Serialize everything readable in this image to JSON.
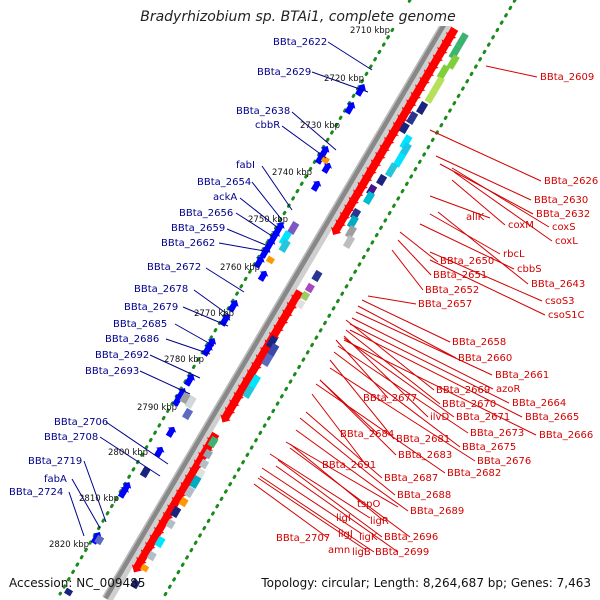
{
  "title": "Bradyrhizobium sp. BTAi1, complete genome",
  "footer": {
    "accession": "Accession: NC_009485",
    "topology": "Topology: circular; Length: 8,264,687 bp; Genes: 7,463"
  },
  "kbp_ticks": [
    "2710 kbp",
    "2720 kbp",
    "2730 kbp",
    "2740 kbp",
    "2750 kbp",
    "2760 kbp",
    "2770 kbp",
    "2780 kbp",
    "2790 kbp",
    "2800 kbp",
    "2810 kbp",
    "2820 kbp"
  ],
  "left_labels": [
    "BBta_2622",
    "BBta_2629",
    "BBta_2638",
    "cbbR",
    "fabI",
    "BBta_2654",
    "ackA",
    "BBta_2656",
    "BBta_2659",
    "BBta_2662",
    "BBta_2672",
    "BBta_2678",
    "BBta_2679",
    "BBta_2685",
    "BBta_2686",
    "BBta_2692",
    "BBta_2693",
    "BBta_2706",
    "BBta_2708",
    "BBta_2719",
    "fabA",
    "BBta_2724"
  ],
  "right_labels": [
    "BBta_2609",
    "BBta_2626",
    "BBta_2630",
    "BBta_2632",
    "allK",
    "coxM",
    "coxS",
    "coxL",
    "rbcL",
    "cbbS",
    "BBta_2650",
    "BBta_2651",
    "BBta_2643",
    "BBta_2652",
    "csoS3",
    "BBta_2657",
    "csoS1C",
    "BBta_2658",
    "BBta_2660",
    "BBta_2661",
    "azoR",
    "BBta_2669",
    "BBta_2677",
    "BBta_2664",
    "BBta_2670",
    "ilvD",
    "BBta_2665",
    "BBta_2671",
    "BBta_2673",
    "BBta_2666",
    "BBta_2684",
    "BBta_2681",
    "BBta_2675",
    "BBta_2683",
    "BBta_2676",
    "BBta_2691",
    "BBta_2682",
    "BBta_2687",
    "BBta_2688",
    "tspO",
    "BBta_2689",
    "ligI",
    "ligR",
    "ligJ",
    "ligK",
    "BBta_2696",
    "BBta_2707",
    "amn",
    "ligB",
    "BBta_2699"
  ],
  "colors": {
    "forward_gene": "#0000ff",
    "reverse_gene": "#ff0000",
    "left_label": "#00008b",
    "right_label": "#d40000",
    "tick_dots": "#1a8a1a",
    "backbone": "#888888"
  }
}
